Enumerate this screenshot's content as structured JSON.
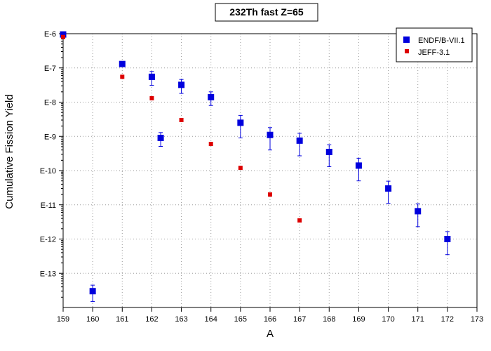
{
  "chart_data": {
    "type": "scatter",
    "title": "232Th fast Z=65",
    "xlabel": "A",
    "ylabel": "Cumulative Fission Yield",
    "xlim": [
      159,
      173
    ],
    "ylim_exponent": [
      -14,
      -6
    ],
    "yscale": "log",
    "x_ticks": [
      159,
      160,
      161,
      162,
      163,
      164,
      165,
      166,
      167,
      168,
      169,
      170,
      171,
      172,
      173
    ],
    "y_ticks": [
      {
        "exp": -6,
        "label": "E-6"
      },
      {
        "exp": -7,
        "label": "E-7"
      },
      {
        "exp": -8,
        "label": "E-8"
      },
      {
        "exp": -9,
        "label": "E-9"
      },
      {
        "exp": -10,
        "label": "E-10"
      },
      {
        "exp": -11,
        "label": "E-11"
      },
      {
        "exp": -12,
        "label": "E-12"
      },
      {
        "exp": -13,
        "label": "E-13"
      }
    ],
    "grid": true,
    "legend_position": "top-right",
    "series": [
      {
        "name": "ENDF/B-VII.1",
        "color": "#0000dd",
        "marker": "square-large",
        "error_bars": true,
        "points": [
          {
            "x": 159,
            "y": 9.5e-07,
            "err_low": 1.5e-07,
            "err_high": 1.5e-07
          },
          {
            "x": 160,
            "y": 3e-14,
            "err_low": 1.5e-14,
            "err_high": 1.5e-14
          },
          {
            "x": 161,
            "y": 1.3e-07,
            "err_low": 1.5e-08,
            "err_high": 1.5e-08
          },
          {
            "x": 162,
            "y": 5.5e-08,
            "err_low": 2.4e-08,
            "err_high": 2.4e-08
          },
          {
            "x": 162.3,
            "y": 9e-10,
            "err_low": 3.9e-10,
            "err_high": 3.9e-10
          },
          {
            "x": 163,
            "y": 3.2e-08,
            "err_low": 1.4e-08,
            "err_high": 1.4e-08
          },
          {
            "x": 164,
            "y": 1.4e-08,
            "err_low": 6e-09,
            "err_high": 6e-09
          },
          {
            "x": 165,
            "y": 2.5e-09,
            "err_low": 1.6e-09,
            "err_high": 1.6e-09
          },
          {
            "x": 166,
            "y": 1.1e-09,
            "err_low": 7e-10,
            "err_high": 7e-10
          },
          {
            "x": 167,
            "y": 7.5e-10,
            "err_low": 4.8e-10,
            "err_high": 4.8e-10
          },
          {
            "x": 168,
            "y": 3.5e-10,
            "err_low": 2.2e-10,
            "err_high": 2.2e-10
          },
          {
            "x": 169,
            "y": 1.4e-10,
            "err_low": 9e-11,
            "err_high": 9e-11
          },
          {
            "x": 170,
            "y": 3e-11,
            "err_low": 1.9e-11,
            "err_high": 1.9e-11
          },
          {
            "x": 171,
            "y": 6.5e-12,
            "err_low": 4.2e-12,
            "err_high": 4.2e-12
          },
          {
            "x": 172,
            "y": 1e-12,
            "err_low": 6.5e-13,
            "err_high": 6.5e-13
          }
        ]
      },
      {
        "name": "JEFF-3.1",
        "color": "#dd0000",
        "marker": "square-small",
        "error_bars": false,
        "points": [
          {
            "x": 159,
            "y": 8e-07
          },
          {
            "x": 161,
            "y": 5.5e-08
          },
          {
            "x": 162,
            "y": 1.3e-08
          },
          {
            "x": 163,
            "y": 3e-09
          },
          {
            "x": 164,
            "y": 6e-10
          },
          {
            "x": 165,
            "y": 1.2e-10
          },
          {
            "x": 166,
            "y": 2e-11
          },
          {
            "x": 167,
            "y": 3.5e-12
          }
        ]
      }
    ]
  }
}
